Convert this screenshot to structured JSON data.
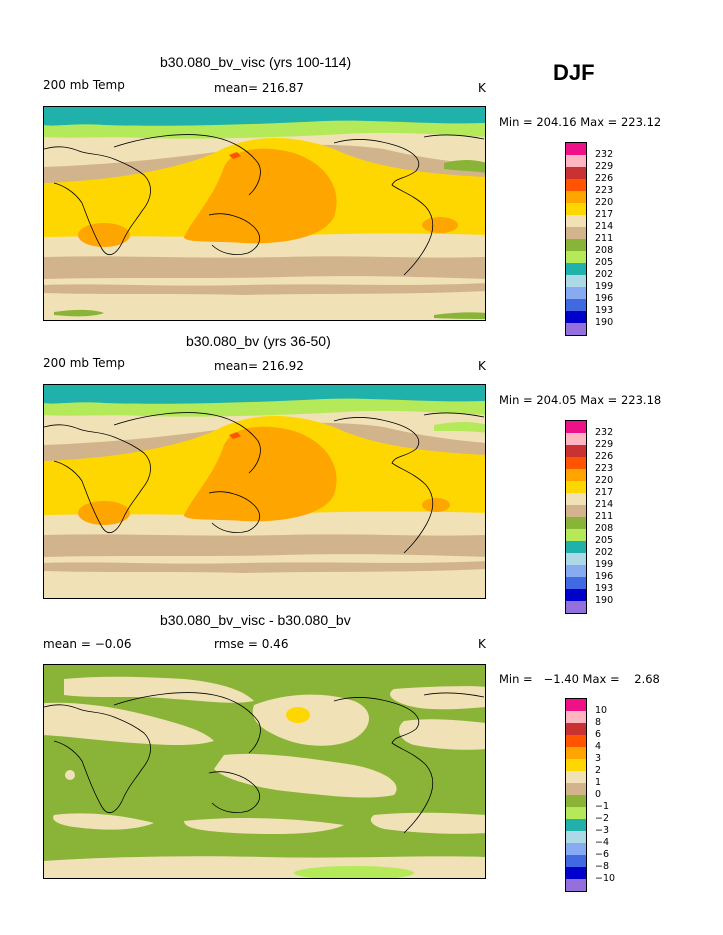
{
  "season": "DJF",
  "panels": [
    {
      "title": "b30.080_bv_visc (yrs 100-114)",
      "left_label": "200 mb Temp",
      "center_label": "mean= 216.87",
      "right_label": "K",
      "min_max": "Min = 204.16 Max = 223.12",
      "legend_labels": [
        "232",
        "229",
        "226",
        "223",
        "220",
        "217",
        "214",
        "211",
        "208",
        "205",
        "202",
        "199",
        "196",
        "193",
        "190"
      ]
    },
    {
      "title": "b30.080_bv (yrs 36-50)",
      "left_label": "200 mb Temp",
      "center_label": "mean= 216.92",
      "right_label": "K",
      "min_max": "Min = 204.05 Max = 223.18",
      "legend_labels": [
        "232",
        "229",
        "226",
        "223",
        "220",
        "217",
        "214",
        "211",
        "208",
        "205",
        "202",
        "199",
        "196",
        "193",
        "190"
      ]
    },
    {
      "title": "b30.080_bv_visc - b30.080_bv",
      "left_label": "mean =   −0.06",
      "center_label": "rmse =     0.46",
      "right_label": "K",
      "min_max": "Min =   −1.40 Max =    2.68",
      "legend_labels": [
        "10",
        "8",
        "6",
        "4",
        "3",
        "2",
        "1",
        "0",
        "−1",
        "−2",
        "−3",
        "−4",
        "−6",
        "−8",
        "−10"
      ]
    }
  ],
  "palette": [
    "#ee1188",
    "#ffb6c1",
    "#c83232",
    "#ff5500",
    "#ffa500",
    "#ffd700",
    "#f0e2b6",
    "#d2b48c",
    "#8ab438",
    "#b4ea5a",
    "#20b2aa",
    "#add8e6",
    "#87aaf0",
    "#4169e1",
    "#0000cd",
    "#9370db"
  ],
  "colors": {
    "frame": "#000000",
    "warm_orange": "#ffa500",
    "yellow": "#ffd700",
    "tan": "#d2b48c",
    "wheat": "#f0e2b6",
    "olive_green": "#8ab438",
    "light_green": "#b4ea5a",
    "teal": "#20b2aa",
    "red": "#ff5500"
  }
}
